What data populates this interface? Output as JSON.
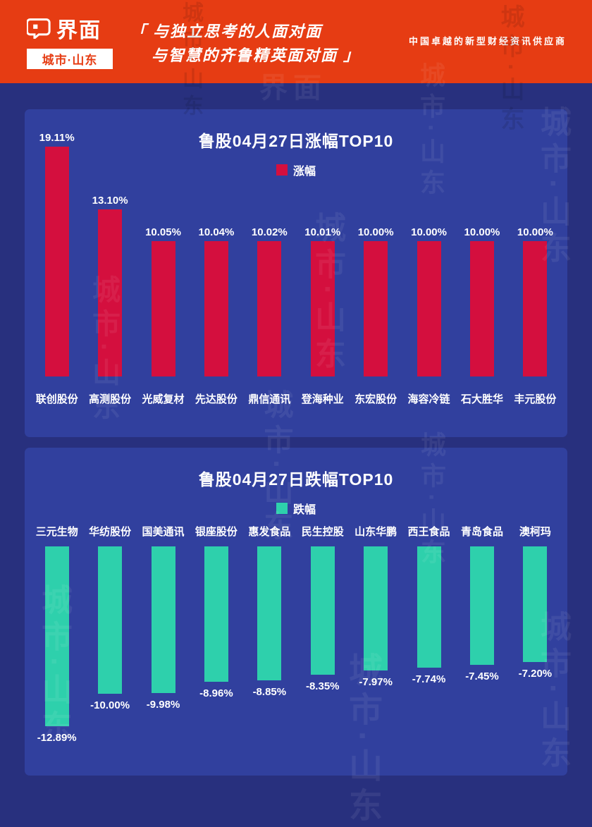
{
  "brand": {
    "logo_text": "界面",
    "logo_sub": "城市·山东",
    "quote_line1": "「 与独立思考的人面对面",
    "quote_line2": "与智慧的齐鲁精英面对面 」",
    "tagline": "中国卓越的新型财经资讯供应商"
  },
  "watermark": {
    "text": "城市·山东",
    "brand": "界面"
  },
  "colors": {
    "header_bg": "#e63c13",
    "page_bg": "#28307e",
    "panel_bg": "#31409e",
    "up_bar": "#d40f3e",
    "down_bar": "#2ed0ac"
  },
  "chart_data": [
    {
      "type": "bar",
      "title": "鲁股04月27日涨幅TOP10",
      "legend": "涨幅",
      "direction": "up",
      "color": "#d40f3e",
      "categories": [
        "联创股份",
        "高测股份",
        "光威复材",
        "先达股份",
        "鼎信通讯",
        "登海种业",
        "东宏股份",
        "海容冷链",
        "石大胜华",
        "丰元股份"
      ],
      "values": [
        19.11,
        13.1,
        10.05,
        10.04,
        10.02,
        10.01,
        10.0,
        10.0,
        10.0,
        10.0
      ],
      "labels": [
        "19.11%",
        "13.10%",
        "10.05%",
        "10.04%",
        "10.02%",
        "10.01%",
        "10.00%",
        "10.00%",
        "10.00%",
        "10.00%"
      ],
      "xlabel": "",
      "ylabel": "",
      "grid": false,
      "legend_position": "top"
    },
    {
      "type": "bar",
      "title": "鲁股04月27日跌幅TOP10",
      "legend": "跌幅",
      "direction": "down",
      "color": "#2ed0ac",
      "categories": [
        "三元生物",
        "华纺股份",
        "国美通讯",
        "银座股份",
        "惠发食品",
        "民生控股",
        "山东华鹏",
        "西王食品",
        "青岛食品",
        "澳柯玛"
      ],
      "values": [
        -12.89,
        -10.0,
        -9.98,
        -8.96,
        -8.85,
        -8.35,
        -7.97,
        -7.74,
        -7.45,
        -7.2
      ],
      "labels": [
        "-12.89%",
        "-10.00%",
        "-9.98%",
        "-8.96%",
        "-8.85%",
        "-8.35%",
        "-7.97%",
        "-7.74%",
        "-7.45%",
        "-7.20%"
      ],
      "xlabel": "",
      "ylabel": "",
      "grid": false,
      "legend_position": "top"
    }
  ]
}
